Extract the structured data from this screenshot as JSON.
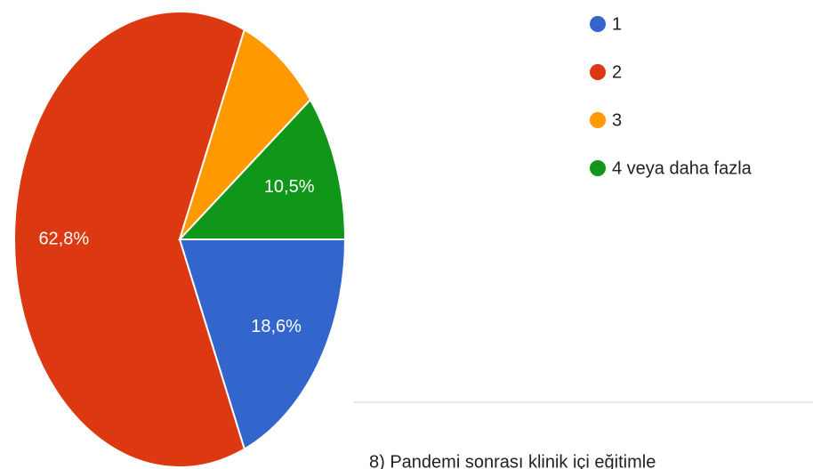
{
  "chart_data": {
    "type": "pie",
    "categories": [
      "1",
      "2",
      "3",
      "4 veya daha fazla"
    ],
    "values": [
      18.6,
      62.8,
      8.1,
      10.5
    ],
    "value_labels": [
      "18,6%",
      "62,8%",
      null,
      "10,5%"
    ],
    "colors": [
      "#3366cc",
      "#dc3912",
      "#ff9900",
      "#109618"
    ],
    "legend": "right"
  },
  "footer_text": "8) Pandemi sonrası klinik içi eğitimle"
}
